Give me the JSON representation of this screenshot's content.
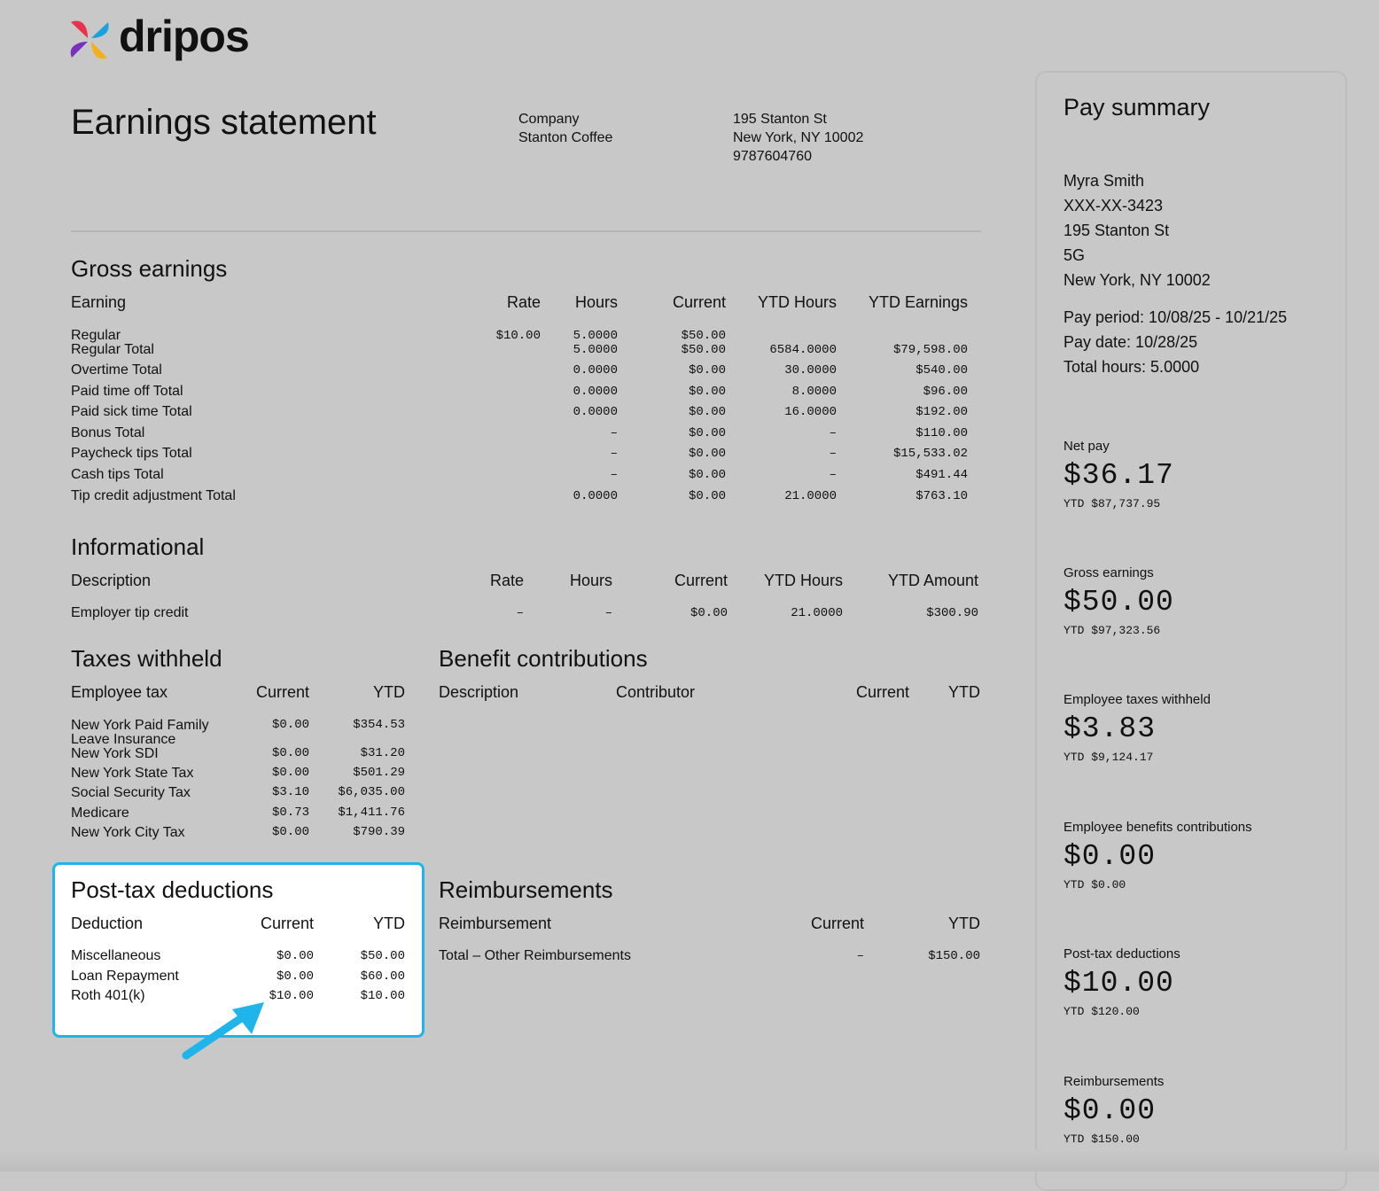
{
  "brand": {
    "name": "dripos"
  },
  "statement": {
    "title": "Earnings statement",
    "company_label": "Company",
    "company_name": "Stanton Coffee",
    "address_line1": "195 Stanton St",
    "address_line2": "New York, NY 10002",
    "phone": "9787604760"
  },
  "gross_earnings": {
    "title": "Gross earnings",
    "headers": [
      "Earning",
      "Rate",
      "Hours",
      "Current",
      "YTD Hours",
      "YTD Earnings"
    ],
    "rows": [
      {
        "label": "Regular",
        "rate": "$10.00",
        "hours": "5.0000",
        "current": "$50.00",
        "ytd_hours": "",
        "ytd_earnings": ""
      },
      {
        "label": "Regular Total",
        "rate": "",
        "hours": "5.0000",
        "current": "$50.00",
        "ytd_hours": "6584.0000",
        "ytd_earnings": "$79,598.00"
      },
      {
        "label": "Overtime Total",
        "rate": "",
        "hours": "0.0000",
        "current": "$0.00",
        "ytd_hours": "30.0000",
        "ytd_earnings": "$540.00"
      },
      {
        "label": "Paid time off Total",
        "rate": "",
        "hours": "0.0000",
        "current": "$0.00",
        "ytd_hours": "8.0000",
        "ytd_earnings": "$96.00"
      },
      {
        "label": "Paid sick time Total",
        "rate": "",
        "hours": "0.0000",
        "current": "$0.00",
        "ytd_hours": "16.0000",
        "ytd_earnings": "$192.00"
      },
      {
        "label": "Bonus Total",
        "rate": "",
        "hours": "–",
        "current": "$0.00",
        "ytd_hours": "–",
        "ytd_earnings": "$110.00"
      },
      {
        "label": "Paycheck tips Total",
        "rate": "",
        "hours": "–",
        "current": "$0.00",
        "ytd_hours": "–",
        "ytd_earnings": "$15,533.02"
      },
      {
        "label": "Cash tips Total",
        "rate": "",
        "hours": "–",
        "current": "$0.00",
        "ytd_hours": "–",
        "ytd_earnings": "$491.44"
      },
      {
        "label": "Tip credit adjustment Total",
        "rate": "",
        "hours": "0.0000",
        "current": "$0.00",
        "ytd_hours": "21.0000",
        "ytd_earnings": "$763.10"
      }
    ]
  },
  "informational": {
    "title": "Informational",
    "headers": [
      "Description",
      "Rate",
      "Hours",
      "Current",
      "YTD Hours",
      "YTD Amount"
    ],
    "rows": [
      {
        "label": "Employer tip credit",
        "rate": "–",
        "hours": "–",
        "current": "$0.00",
        "ytd_hours": "21.0000",
        "ytd_amount": "$300.90"
      }
    ]
  },
  "taxes": {
    "title": "Taxes withheld",
    "headers": [
      "Employee tax",
      "Current",
      "YTD"
    ],
    "rows": [
      {
        "label1": "New York Paid Family",
        "label2": "Leave Insurance",
        "current": "$0.00",
        "ytd": "$354.53"
      },
      {
        "label1": "New York SDI",
        "label2": "",
        "current": "$0.00",
        "ytd": "$31.20"
      },
      {
        "label1": "New York State Tax",
        "label2": "",
        "current": "$0.00",
        "ytd": "$501.29"
      },
      {
        "label1": "Social Security Tax",
        "label2": "",
        "current": "$3.10",
        "ytd": "$6,035.00"
      },
      {
        "label1": "Medicare",
        "label2": "",
        "current": "$0.73",
        "ytd": "$1,411.76"
      },
      {
        "label1": "New York City Tax",
        "label2": "",
        "current": "$0.00",
        "ytd": "$790.39"
      }
    ]
  },
  "benefits": {
    "title": "Benefit contributions",
    "headers": [
      "Description",
      "Contributor",
      "Current",
      "YTD"
    ]
  },
  "post_tax": {
    "title": "Post-tax deductions",
    "headers": [
      "Deduction",
      "Current",
      "YTD"
    ],
    "rows": [
      {
        "label": "Miscellaneous",
        "current": "$0.00",
        "ytd": "$50.00"
      },
      {
        "label": "Loan Repayment",
        "current": "$0.00",
        "ytd": "$60.00"
      },
      {
        "label": "Roth 401(k)",
        "current": "$10.00",
        "ytd": "$10.00"
      }
    ]
  },
  "reimbursements": {
    "title": "Reimbursements",
    "headers": [
      "Reimbursement",
      "Current",
      "YTD"
    ],
    "rows": [
      {
        "label": "Total – Other Reimbursements",
        "current": "–",
        "ytd": "$150.00"
      }
    ]
  },
  "pay_summary": {
    "title": "Pay summary",
    "employee_name": "Myra Smith",
    "ssn": "XXX-XX-3423",
    "address_line1": "195 Stanton St",
    "address_line2": "5G",
    "address_line3": "New York, NY 10002",
    "pay_period": "Pay period: 10/08/25 - 10/21/25",
    "pay_date": "Pay date: 10/28/25",
    "total_hours": "Total hours: 5.0000",
    "blocks": [
      {
        "label": "Net pay",
        "amount": "$36.17",
        "ytd": "YTD $87,737.95"
      },
      {
        "label": "Gross earnings",
        "amount": "$50.00",
        "ytd": "YTD $97,323.56"
      },
      {
        "label": "Employee taxes withheld",
        "amount": "$3.83",
        "ytd": "YTD $9,124.17"
      },
      {
        "label": "Employee benefits contributions",
        "amount": "$0.00",
        "ytd": "YTD $0.00"
      },
      {
        "label": "Post-tax deductions",
        "amount": "$10.00",
        "ytd": "YTD $120.00"
      },
      {
        "label": "Reimbursements",
        "amount": "$0.00",
        "ytd": "YTD $150.00"
      }
    ]
  },
  "colors": {
    "background": "#c8c8c8",
    "highlight_border": "#1fb4ea",
    "arrow": "#1fb4ea"
  }
}
